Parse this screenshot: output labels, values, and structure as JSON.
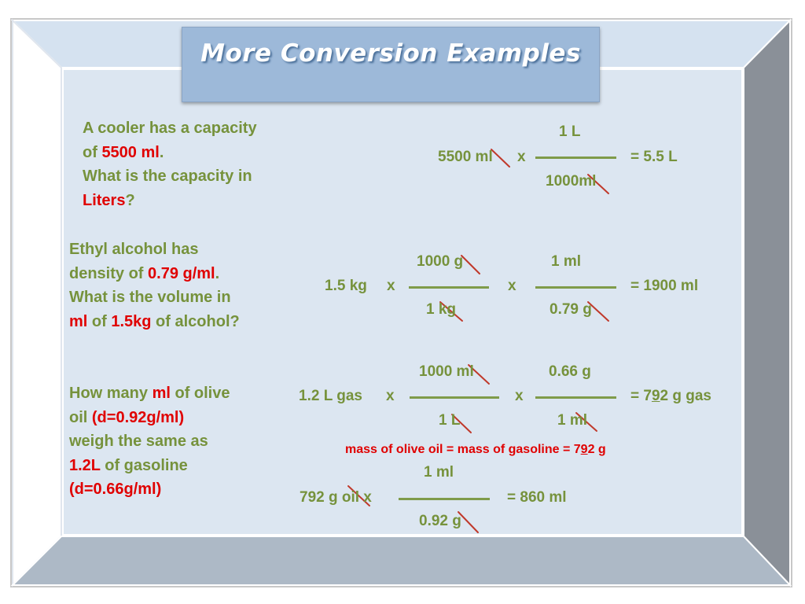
{
  "title": "More Conversion Examples",
  "colors": {
    "accent_green": "#76923c",
    "highlight_red": "#e00000",
    "title_bg": "#9db9d9",
    "panel_bg": "#dce6f1"
  },
  "q1": {
    "l1": "A cooler has a capacity",
    "l2a": "of ",
    "l2b": "5500 ml",
    "l2c": ".",
    "l3": "What is the capacity in",
    "l4a": "Liters",
    "l4b": "?"
  },
  "q2": {
    "l1": "Ethyl alcohol has",
    "l2a": "density of ",
    "l2b": "0.79 g/ml",
    "l2c": ".",
    "l3": "What is the volume in",
    "l4a": "ml",
    "l4b": " of ",
    "l4c": "1.5kg",
    "l4d": " of alcohol?"
  },
  "q3": {
    "l1a": "How many ",
    "l1b": "ml",
    "l1c": " of olive",
    "l2a": "oil ",
    "l2b": "(d=0.92g/ml)",
    "l3": "weigh the same as",
    "l4a": "1.2L",
    "l4b": " of gasoline",
    "l5": "(d=0.66g/ml)"
  },
  "e1": {
    "start": "5500 ml",
    "x": "x",
    "num": "1 L",
    "den": "1000ml",
    "result": "= 5.5 L"
  },
  "e2": {
    "start": "1.5 kg",
    "x1": "x",
    "num1": "1000 g",
    "den1": "1 kg",
    "x2": "x",
    "num2": "1 ml",
    "den2": "0.79 g",
    "result": "= 1900 ml"
  },
  "e3": {
    "start": "1.2 L gas",
    "x1": "x",
    "num1": "1000 ml",
    "den1": "1 L",
    "x2": "x",
    "num2": "0.66 g",
    "den2": "1 ml",
    "result_a": "= 7",
    "result_b": "9",
    "result_c": "2 g gas"
  },
  "note": {
    "a": "mass of olive oil = mass of gasoline = 7",
    "b": "9",
    "c": "2 g"
  },
  "e4": {
    "start": "792 g oil x",
    "num": "1 ml",
    "den": "0.92 g",
    "result": "= 860 ml"
  }
}
